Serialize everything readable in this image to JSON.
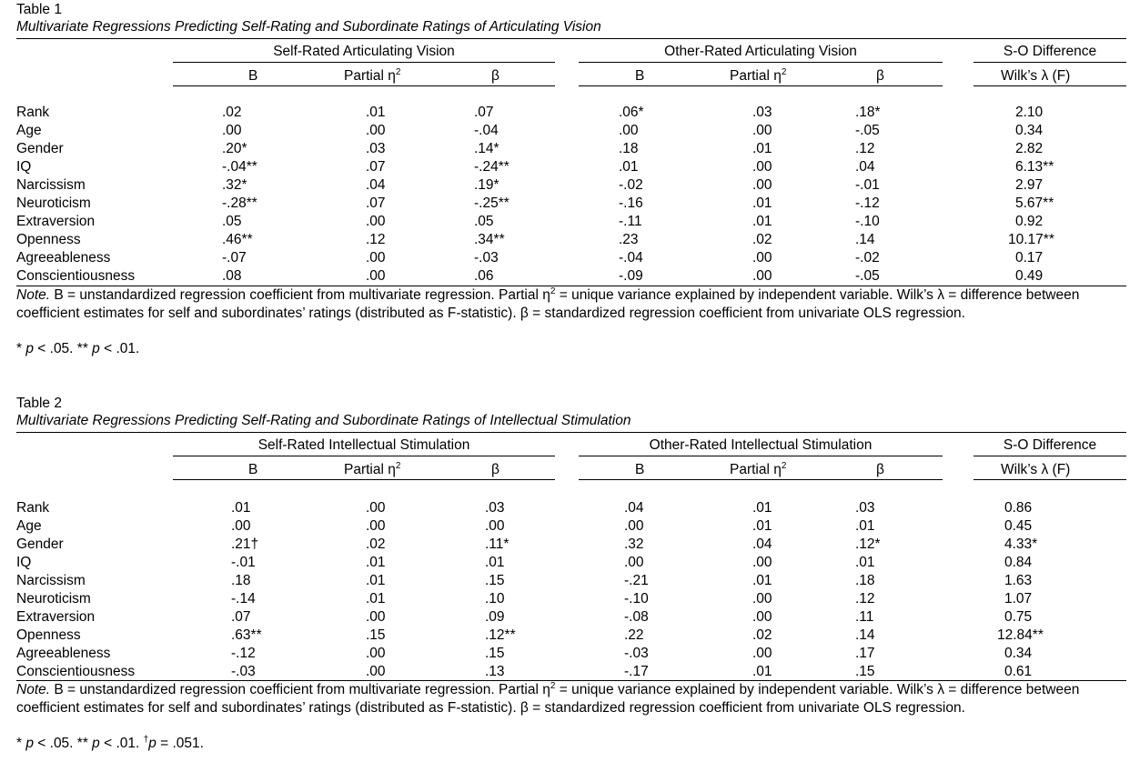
{
  "tables": [
    {
      "number": "Table 1",
      "caption": "Multivariate Regressions Predicting Self-Rating and Subordinate Ratings of Articulating Vision",
      "group_self": "Self-Rated Articulating Vision",
      "group_other": "Other-Rated Articulating Vision",
      "group_diff": "S-O Difference",
      "col_b": "B",
      "col_partial": "Partial η",
      "col_partial_sup": "2",
      "col_beta": "β",
      "col_wilk": "Wilk’s λ (F)",
      "rows": [
        {
          "label": "Rank",
          "sb": ".02",
          "sp": ".01",
          "sbeta": ".07",
          "ob": ".06*",
          "op": ".03",
          "obeta": ".18*",
          "w": "2.10"
        },
        {
          "label": "Age",
          "sb": ".00",
          "sp": ".00",
          "sbeta": "-.04",
          "ob": ".00",
          "op": ".00",
          "obeta": "-.05",
          "w": "0.34"
        },
        {
          "label": "Gender",
          "sb": ".20*",
          "sp": ".03",
          "sbeta": ".14*",
          "ob": ".18",
          "op": ".01",
          "obeta": ".12",
          "w": "2.82"
        },
        {
          "label": "IQ",
          "sb": "-.04**",
          "sp": ".07",
          "sbeta": "-.24**",
          "ob": ".01",
          "op": ".00",
          "obeta": ".04",
          "w": "6.13**"
        },
        {
          "label": "Narcissism",
          "sb": ".32*",
          "sp": ".04",
          "sbeta": ".19*",
          "ob": "-.02",
          "op": ".00",
          "obeta": "-.01",
          "w": "2.97"
        },
        {
          "label": "Neuroticism",
          "sb": "-.28**",
          "sp": ".07",
          "sbeta": "-.25**",
          "ob": "-.16",
          "op": ".01",
          "obeta": "-.12",
          "w": "5.67**"
        },
        {
          "label": "Extraversion",
          "sb": ".05",
          "sp": ".00",
          "sbeta": ".05",
          "ob": "-.11",
          "op": ".01",
          "obeta": "-.10",
          "w": "0.92"
        },
        {
          "label": "Openness",
          "sb": ".46**",
          "sp": ".12",
          "sbeta": ".34**",
          "ob": ".23",
          "op": ".02",
          "obeta": ".14",
          "w": "10.17**"
        },
        {
          "label": "Agreeableness",
          "sb": "-.07",
          "sp": ".00",
          "sbeta": "-.03",
          "ob": "-.04",
          "op": ".00",
          "obeta": "-.02",
          "w": "0.17"
        },
        {
          "label": "Conscientiousness",
          "sb": ".08",
          "sp": ".00",
          "sbeta": ".06",
          "ob": "-.09",
          "op": ".00",
          "obeta": "-.05",
          "w": "0.49"
        }
      ],
      "note_label": "Note.",
      "note_text_1": " B = unstandardized regression coefficient from multivariate regression. Partial η",
      "note_sup": "2",
      "note_text_2": " = unique variance explained by independent variable. Wilk’s λ = difference between coefficient estimates for self and subordinates’ ratings (distributed as F-statistic). β = standardized regression coefficient from univariate OLS regression.",
      "sig_1_mark": "* ",
      "sig_1_p": "p",
      "sig_1_val": " < .05.  ** ",
      "sig_2_p": "p",
      "sig_2_val": " < .01."
    },
    {
      "number": "Table 2",
      "caption": "Multivariate Regressions Predicting Self-Rating and Subordinate Ratings of Intellectual Stimulation",
      "group_self": "Self-Rated Intellectual Stimulation",
      "group_other": "Other-Rated Intellectual Stimulation",
      "group_diff": "S-O Difference",
      "col_b": "B",
      "col_partial": "Partial η",
      "col_partial_sup": "2",
      "col_beta": "β",
      "col_wilk": "Wilk’s λ (F)",
      "rows": [
        {
          "label": "Rank",
          "sb": ".01",
          "sp": ".00",
          "sbeta": ".03",
          "ob": ".04",
          "op": ".01",
          "obeta": ".03",
          "w": "0.86"
        },
        {
          "label": "Age",
          "sb": ".00",
          "sp": ".00",
          "sbeta": ".00",
          "ob": ".00",
          "op": ".01",
          "obeta": ".01",
          "w": "0.45"
        },
        {
          "label": "Gender",
          "sb": ".21†",
          "sp": ".02",
          "sbeta": ".11*",
          "ob": ".32",
          "op": ".04",
          "obeta": ".12*",
          "w": "4.33*"
        },
        {
          "label": "IQ",
          "sb": "-.01",
          "sp": ".01",
          "sbeta": ".01",
          "ob": ".00",
          "op": ".00",
          "obeta": ".01",
          "w": "0.84"
        },
        {
          "label": "Narcissism",
          "sb": ".18",
          "sp": ".01",
          "sbeta": ".15",
          "ob": "-.21",
          "op": ".01",
          "obeta": ".18",
          "w": "1.63"
        },
        {
          "label": "Neuroticism",
          "sb": "-.14",
          "sp": ".01",
          "sbeta": ".10",
          "ob": "-.10",
          "op": ".00",
          "obeta": ".12",
          "w": "1.07"
        },
        {
          "label": "Extraversion",
          "sb": ".07",
          "sp": ".00",
          "sbeta": ".09",
          "ob": "-.08",
          "op": ".00",
          "obeta": ".11",
          "w": "0.75"
        },
        {
          "label": "Openness",
          "sb": ".63**",
          "sp": ".15",
          "sbeta": ".12**",
          "ob": ".22",
          "op": ".02",
          "obeta": ".14",
          "w": "12.84**"
        },
        {
          "label": "Agreeableness",
          "sb": "-.12",
          "sp": ".00",
          "sbeta": ".15",
          "ob": "-.03",
          "op": ".00",
          "obeta": ".17",
          "w": "0.34"
        },
        {
          "label": "Conscientiousness",
          "sb": "-.03",
          "sp": ".00",
          "sbeta": ".13",
          "ob": "-.17",
          "op": ".01",
          "obeta": ".15",
          "w": "0.61"
        }
      ],
      "note_label": "Note.",
      "note_text_1": " B = unstandardized regression coefficient from multivariate regression. Partial η",
      "note_sup": "2",
      "note_text_2": " = unique variance explained by independent variable. Wilk’s λ = difference between coefficient estimates for self and subordinates’ ratings (distributed as F-statistic). β = standardized regression coefficient from univariate OLS regression.",
      "sig_1_mark": "* ",
      "sig_1_p": "p",
      "sig_1_val": " < .05.  ** ",
      "sig_2_p": "p",
      "sig_2_val": " < .01. ",
      "sig_3_mark": "†",
      "sig_3_p": "p",
      "sig_3_val": " = .051."
    }
  ]
}
